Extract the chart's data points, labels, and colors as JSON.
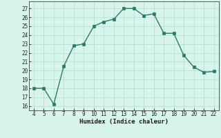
{
  "x": [
    4,
    5,
    6,
    7,
    8,
    9,
    10,
    11,
    12,
    13,
    14,
    15,
    16,
    17,
    18,
    19,
    20,
    21,
    22
  ],
  "y": [
    18.0,
    18.0,
    16.2,
    20.5,
    22.8,
    23.0,
    25.0,
    25.5,
    25.8,
    27.0,
    27.0,
    26.2,
    26.4,
    24.2,
    24.2,
    21.7,
    20.4,
    19.8,
    19.9
  ],
  "line_color": "#2a7a6a",
  "marker_color": "#2a7a6a",
  "bg_color": "#d8f5ec",
  "grid_color": "#b8ddd5",
  "xlabel": "Humidex (Indice chaleur)",
  "xlim": [
    3.5,
    22.5
  ],
  "ylim": [
    15.5,
    27.8
  ],
  "yticks": [
    16,
    17,
    18,
    19,
    20,
    21,
    22,
    23,
    24,
    25,
    26,
    27
  ],
  "xticks": [
    4,
    5,
    6,
    7,
    8,
    9,
    10,
    11,
    12,
    13,
    14,
    15,
    16,
    17,
    18,
    19,
    20,
    21,
    22
  ],
  "tick_fontsize": 5.5,
  "xlabel_fontsize": 6.5
}
